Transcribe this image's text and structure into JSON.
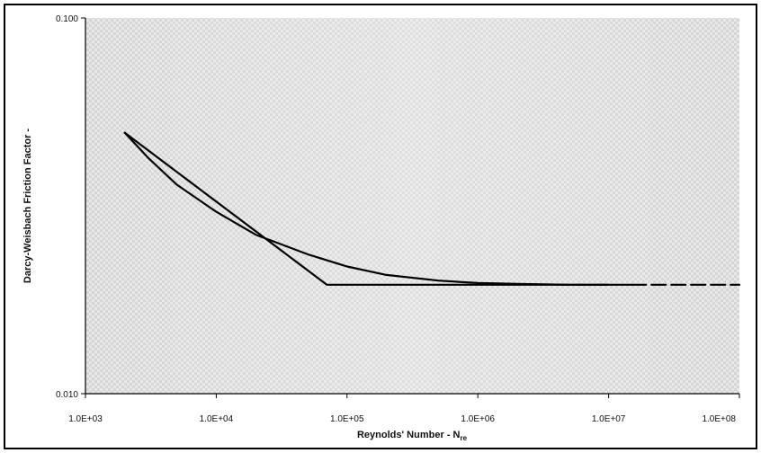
{
  "chart_data": {
    "type": "line",
    "xlabel": "Reynolds' Number - N",
    "xlabel_sub": "re",
    "ylabel": "Darcy-Weisbach Friction Factor -",
    "x_scale": "log",
    "y_scale": "log",
    "xlim": [
      1000,
      100000000
    ],
    "ylim": [
      0.01,
      0.1
    ],
    "x_ticks": [
      {
        "value": 1000,
        "label": "1.0E+03"
      },
      {
        "value": 10000,
        "label": "1.0E+04"
      },
      {
        "value": 100000,
        "label": "1.0E+05"
      },
      {
        "value": 1000000,
        "label": "1.0E+06"
      },
      {
        "value": 10000000,
        "label": "1.0E+07"
      },
      {
        "value": 100000000,
        "label": "1.0E+08"
      }
    ],
    "y_ticks": [
      {
        "value": 0.01,
        "label": "0.010"
      },
      {
        "value": 0.1,
        "label": "0.100"
      }
    ],
    "grid": false,
    "legend": "none",
    "series": [
      {
        "style": "solid",
        "x": [
          2000,
          3000,
          5000,
          10000,
          20000,
          50000,
          100000,
          200000,
          500000,
          1000000,
          2000000,
          5000000,
          10000000
        ],
        "y": [
          0.0495,
          0.0425,
          0.036,
          0.0305,
          0.0265,
          0.0235,
          0.0218,
          0.0207,
          0.02,
          0.0197,
          0.0196,
          0.0195,
          0.0195
        ]
      },
      {
        "style": "solid",
        "x": [
          2000,
          70000,
          15000000
        ],
        "y": [
          0.0495,
          0.0195,
          0.0195
        ]
      },
      {
        "style": "dashed",
        "x": [
          15000000,
          100000000
        ],
        "y": [
          0.0195,
          0.0195
        ]
      }
    ]
  }
}
